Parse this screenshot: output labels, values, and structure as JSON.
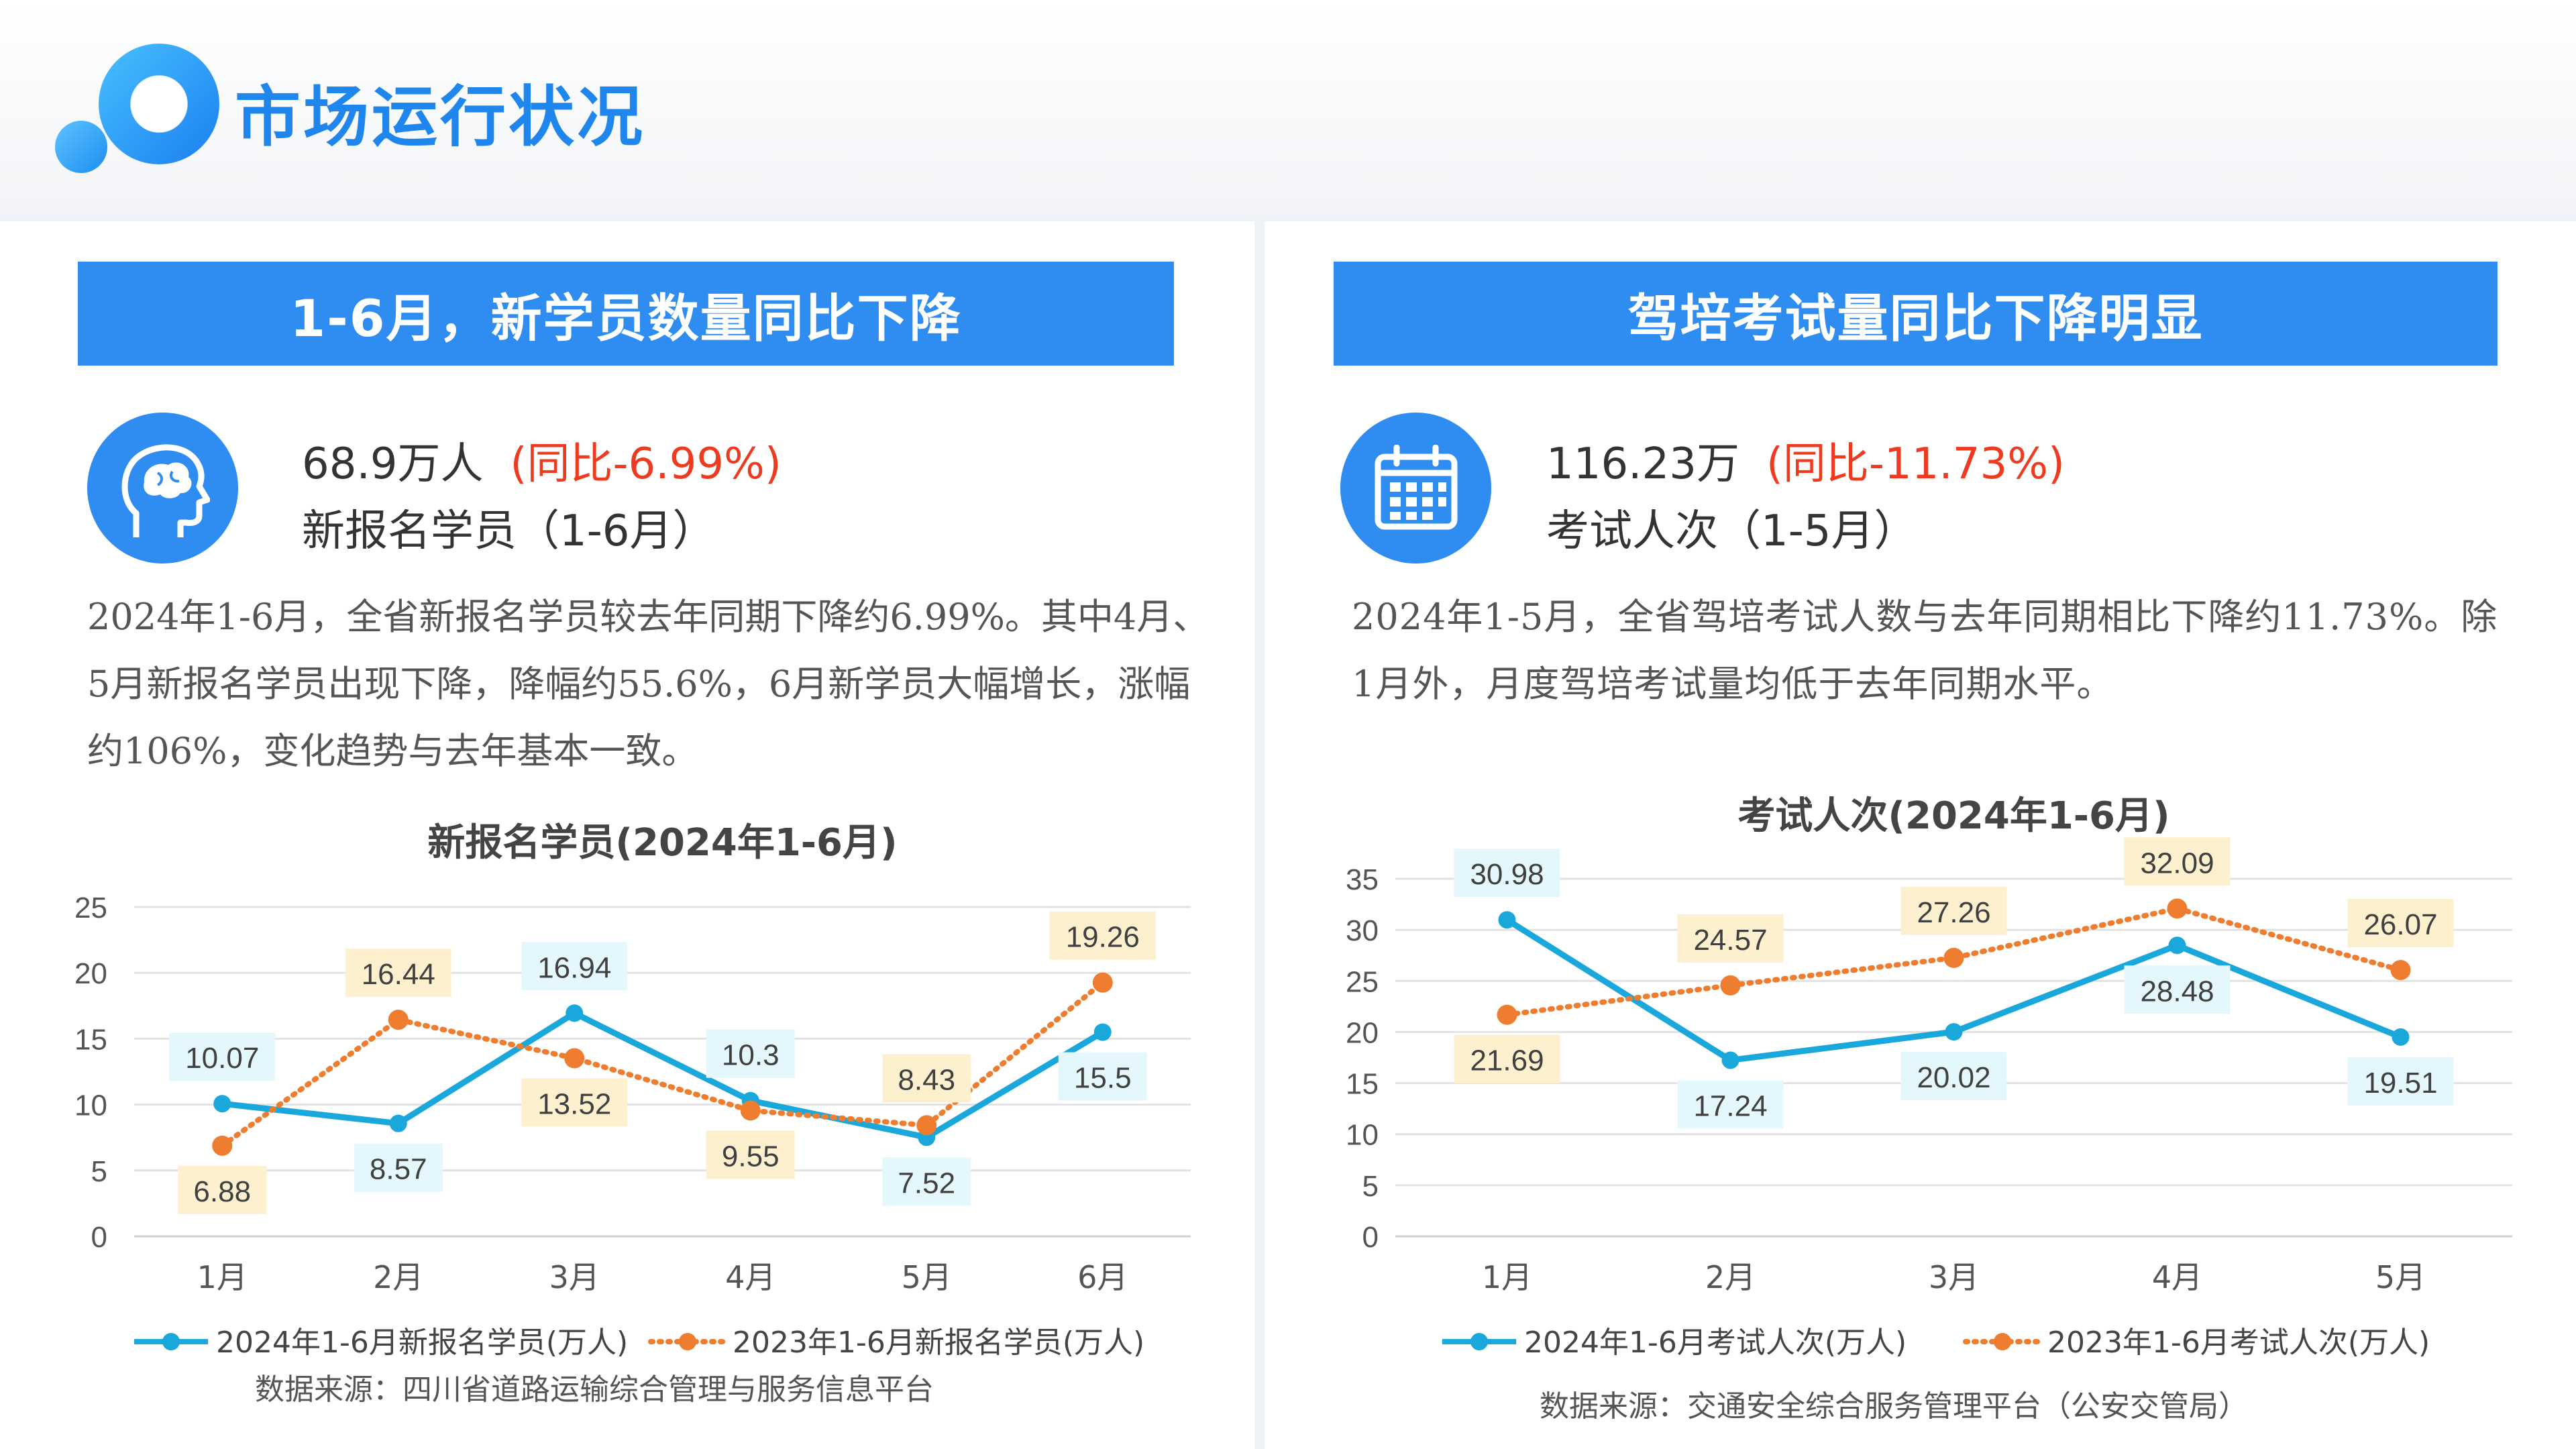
{
  "header": {
    "title": "市场运行状况"
  },
  "left": {
    "banner": "1-6月，新学员数量同比下降",
    "icon": "head-brain-icon",
    "stat_value": "68.9万人",
    "stat_change": "(同比-6.99%)",
    "stat_label": "新报名学员（1-6月）",
    "desc": "2024年1-6月，全省新报名学员较去年同期下降约6.99%。其中4月、5月新报名学员出现下降，降幅约55.6%，6月新学员大幅增长，涨幅约106%，变化趋势与去年基本一致。",
    "source": "数据来源：四川省道路运输综合管理与服务信息平台"
  },
  "right": {
    "banner": "驾培考试量同比下降明显",
    "icon": "calendar-icon",
    "stat_value": "116.23万",
    "stat_change": "(同比-11.73%)",
    "stat_label": "考试人次（1-5月）",
    "desc": "2024年1-5月，全省驾培考试人数与去年同期相比下降约11.73%。除1月外，月度驾培考试量均低于去年同期水平。",
    "source": "数据来源：交通安全综合服务管理平台（公安交管局）"
  },
  "colors": {
    "blue": "#1aa7dc",
    "orange": "#ef7d2f",
    "accent": "#2f8cf0",
    "red": "#ee3b1f"
  },
  "chart_data": [
    {
      "type": "line",
      "title": "新报名学员(2024年1-6月)",
      "categories": [
        "1月",
        "2月",
        "3月",
        "4月",
        "5月",
        "6月"
      ],
      "ylim": [
        0,
        25
      ],
      "yticks": [
        0,
        5,
        10,
        15,
        20,
        25
      ],
      "grid": true,
      "legend": "bottom",
      "series": [
        {
          "name": "2024年1-6月新报名学员(万人)",
          "values": [
            10.07,
            8.57,
            16.94,
            10.3,
            7.52,
            15.5
          ],
          "labels": [
            "10.07",
            "8.57",
            "16.94",
            "10.3",
            "7.52",
            "15.5"
          ],
          "style": "solid",
          "color": "#1aa7dc"
        },
        {
          "name": "2023年1-6月新报名学员(万人)",
          "values": [
            6.88,
            16.44,
            13.52,
            9.55,
            8.43,
            19.26
          ],
          "labels": [
            "6.88",
            "16.44",
            "13.52",
            "9.55",
            "8.43",
            "19.26"
          ],
          "style": "dotted",
          "color": "#ef7d2f"
        }
      ]
    },
    {
      "type": "line",
      "title": "考试人次(2024年1-6月)",
      "categories": [
        "1月",
        "2月",
        "3月",
        "4月",
        "5月"
      ],
      "ylim": [
        0,
        35
      ],
      "yticks": [
        0,
        5,
        10,
        15,
        20,
        25,
        30,
        35
      ],
      "grid": true,
      "legend": "bottom",
      "series": [
        {
          "name": "2024年1-6月考试人次(万人)",
          "values": [
            30.98,
            17.24,
            20.02,
            28.48,
            19.51
          ],
          "labels": [
            "30.98",
            "17.24",
            "20.02",
            "28.48",
            "19.51"
          ],
          "style": "solid",
          "color": "#1aa7dc"
        },
        {
          "name": "2023年1-6月考试人次(万人)",
          "values": [
            21.69,
            24.57,
            27.26,
            32.09,
            26.07
          ],
          "labels": [
            "21.69",
            "24.57",
            "27.26",
            "32.09",
            "26.07"
          ],
          "style": "dotted",
          "color": "#ef7d2f"
        }
      ]
    }
  ]
}
